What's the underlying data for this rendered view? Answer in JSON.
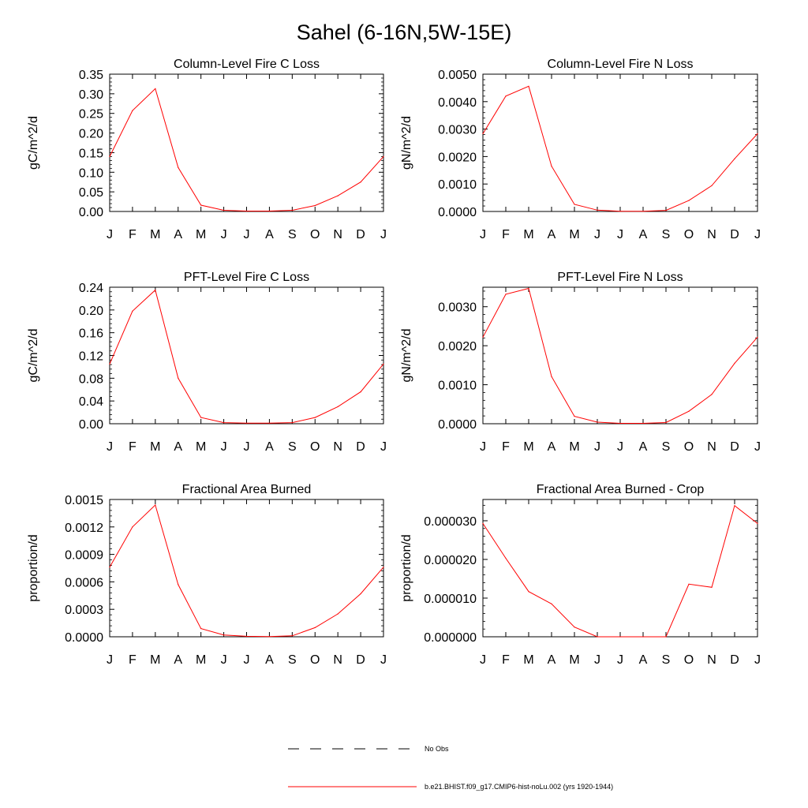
{
  "page": {
    "title": "Sahel (6-16N,5W-15E)"
  },
  "legend": {
    "items": [
      {
        "label": "No Obs",
        "style": "dashed",
        "color": "#000000"
      },
      {
        "label": "b.e21.BHIST.f09_g17.CMIP6-hist-noLu.002 (yrs 1920-1944)",
        "style": "solid",
        "color": "#ff0000"
      }
    ]
  },
  "chart_data": [
    {
      "type": "line",
      "title": "Column-Level Fire C Loss",
      "ylabel": "gC/m^2/d",
      "categories": [
        "J",
        "F",
        "M",
        "A",
        "M",
        "J",
        "J",
        "A",
        "S",
        "O",
        "N",
        "D",
        "J"
      ],
      "ylim": [
        0,
        0.35
      ],
      "yticks": [
        0,
        0.05,
        0.1,
        0.15,
        0.2,
        0.25,
        0.3,
        0.35
      ],
      "ytick_labels": [
        "0.00",
        "0.05",
        "0.10",
        "0.15",
        "0.20",
        "0.25",
        "0.30",
        "0.35"
      ],
      "series": [
        {
          "values": [
            0.14,
            0.257,
            0.313,
            0.112,
            0.016,
            0.003,
            0.001,
            0.001,
            0.003,
            0.015,
            0.04,
            0.075,
            0.14
          ],
          "color": "#ff0000"
        }
      ]
    },
    {
      "type": "line",
      "title": "Column-Level Fire N Loss",
      "ylabel": "gN/m^2/d",
      "categories": [
        "J",
        "F",
        "M",
        "A",
        "M",
        "J",
        "J",
        "A",
        "S",
        "O",
        "N",
        "D",
        "J"
      ],
      "ylim": [
        0,
        0.005
      ],
      "yticks": [
        0,
        0.001,
        0.002,
        0.003,
        0.004,
        0.005
      ],
      "ytick_labels": [
        "0.0000",
        "0.0010",
        "0.0020",
        "0.0030",
        "0.0040",
        "0.0050"
      ],
      "series": [
        {
          "values": [
            0.00283,
            0.0042,
            0.00456,
            0.00165,
            0.00026,
            5e-05,
            1e-05,
            1e-05,
            4e-05,
            0.0004,
            0.00094,
            0.00192,
            0.00283
          ],
          "color": "#ff0000"
        }
      ]
    },
    {
      "type": "line",
      "title": "PFT-Level Fire C Loss",
      "ylabel": "gC/m^2/d",
      "categories": [
        "J",
        "F",
        "M",
        "A",
        "M",
        "J",
        "J",
        "A",
        "S",
        "O",
        "N",
        "D",
        "J"
      ],
      "ylim": [
        0,
        0.24
      ],
      "yticks": [
        0,
        0.04,
        0.08,
        0.12,
        0.16,
        0.2,
        0.24
      ],
      "ytick_labels": [
        "0.00",
        "0.04",
        "0.08",
        "0.12",
        "0.16",
        "0.20",
        "0.24"
      ],
      "series": [
        {
          "values": [
            0.105,
            0.198,
            0.235,
            0.08,
            0.011,
            0.002,
            0.001,
            0.001,
            0.002,
            0.011,
            0.03,
            0.056,
            0.105
          ],
          "color": "#ff0000"
        }
      ]
    },
    {
      "type": "line",
      "title": "PFT-Level Fire N Loss",
      "ylabel": "gN/m^2/d",
      "categories": [
        "J",
        "F",
        "M",
        "A",
        "M",
        "J",
        "J",
        "A",
        "S",
        "O",
        "N",
        "D",
        "J"
      ],
      "ylim": [
        0,
        0.0035
      ],
      "yticks": [
        0,
        0.001,
        0.002,
        0.003
      ],
      "ytick_labels": [
        "0.0000",
        "0.0010",
        "0.0020",
        "0.0030"
      ],
      "series": [
        {
          "values": [
            0.00222,
            0.00332,
            0.00347,
            0.00121,
            0.00019,
            4e-05,
            1e-05,
            1e-05,
            3e-05,
            0.00032,
            0.00075,
            0.00155,
            0.00222
          ],
          "color": "#ff0000"
        }
      ]
    },
    {
      "type": "line",
      "title": "Fractional Area Burned",
      "ylabel": "proportion/d",
      "categories": [
        "J",
        "F",
        "M",
        "A",
        "M",
        "J",
        "J",
        "A",
        "S",
        "O",
        "N",
        "D",
        "J"
      ],
      "ylim": [
        0,
        0.0015
      ],
      "yticks": [
        0,
        0.0003,
        0.0006,
        0.0009,
        0.0012,
        0.0015
      ],
      "ytick_labels": [
        "0.0000",
        "0.0003",
        "0.0006",
        "0.0009",
        "0.0012",
        "0.0015"
      ],
      "series": [
        {
          "values": [
            0.00076,
            0.0012,
            0.00144,
            0.00057,
            9e-05,
            2e-05,
            5e-06,
            3e-06,
            1e-05,
            0.0001,
            0.00025,
            0.00047,
            0.00076
          ],
          "color": "#ff0000"
        }
      ]
    },
    {
      "type": "line",
      "title": "Fractional Area Burned - Crop",
      "ylabel": "proportion/d",
      "categories": [
        "J",
        "F",
        "M",
        "A",
        "M",
        "J",
        "J",
        "A",
        "S",
        "O",
        "N",
        "D",
        "J"
      ],
      "ylim": [
        0,
        3.55e-05
      ],
      "yticks": [
        0,
        1e-05,
        2e-05,
        3e-05
      ],
      "ytick_labels": [
        "0.000000",
        "0.000010",
        "0.000020",
        "0.000030"
      ],
      "series": [
        {
          "values": [
            2.93e-05,
            2.03e-05,
            1.17e-05,
            8.5e-06,
            2.5e-06,
            0.0,
            0.0,
            0.0,
            0.0,
            1.36e-05,
            1.28e-05,
            3.39e-05,
            2.93e-05
          ],
          "color": "#ff0000"
        }
      ]
    }
  ]
}
